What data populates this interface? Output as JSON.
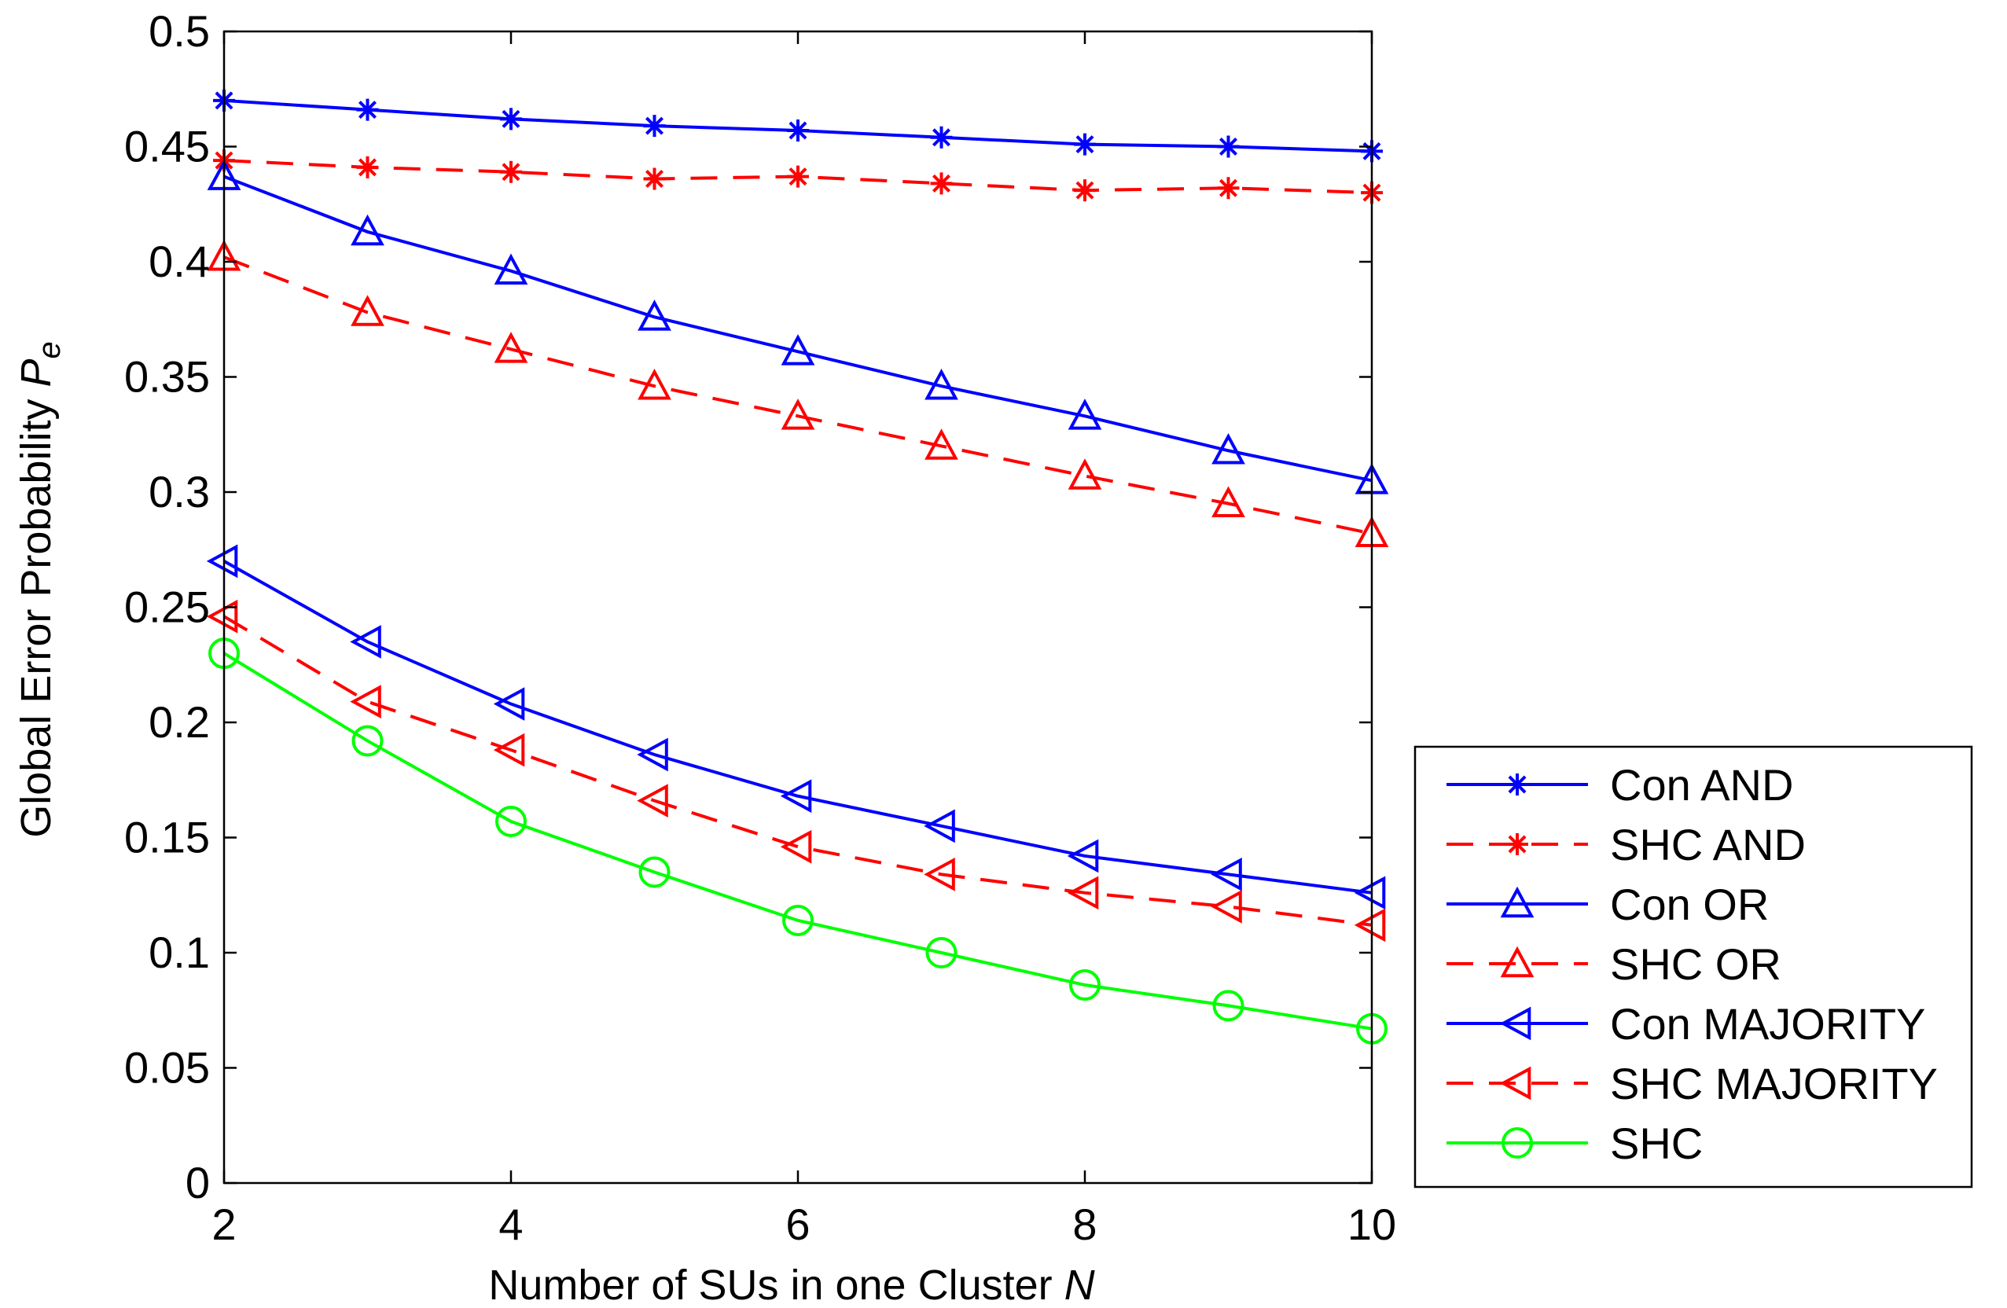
{
  "chart_data": {
    "type": "line",
    "title": "",
    "xlabel": "Number of SUs in one Cluster",
    "xlabel_var": "N",
    "ylabel": "Global Error Probability",
    "ylabel_var": "P",
    "ylabel_sub": "e",
    "xlim": [
      2,
      10
    ],
    "ylim": [
      0,
      0.5
    ],
    "xticks": [
      2,
      4,
      6,
      8,
      10
    ],
    "xtick_labels": [
      "2",
      "4",
      "6",
      "8",
      "10"
    ],
    "yticks": [
      0,
      0.05,
      0.1,
      0.15,
      0.2,
      0.25,
      0.3,
      0.35,
      0.4,
      0.45,
      0.5
    ],
    "ytick_labels": [
      "0",
      "0.05",
      "0.1",
      "0.15",
      "0.2",
      "0.25",
      "0.3",
      "0.35",
      "0.4",
      "0.45",
      "0.5"
    ],
    "grid": false,
    "legend_position": "outside-right-bottom",
    "x": [
      2,
      3,
      4,
      5,
      6,
      7,
      8,
      9,
      10
    ],
    "series": [
      {
        "name": "Con AND",
        "color": "#0000ff",
        "dash": "solid",
        "marker": "asterisk",
        "values": [
          0.47,
          0.466,
          0.462,
          0.459,
          0.457,
          0.454,
          0.451,
          0.45,
          0.448
        ]
      },
      {
        "name": "SHC AND",
        "color": "#ff0000",
        "dash": "dashed",
        "marker": "asterisk",
        "values": [
          0.444,
          0.441,
          0.439,
          0.436,
          0.437,
          0.434,
          0.431,
          0.432,
          0.43
        ]
      },
      {
        "name": "Con OR",
        "color": "#0000ff",
        "dash": "solid",
        "marker": "triangle-up",
        "values": [
          0.437,
          0.413,
          0.396,
          0.376,
          0.361,
          0.346,
          0.333,
          0.318,
          0.305
        ]
      },
      {
        "name": "SHC OR",
        "color": "#ff0000",
        "dash": "dashed",
        "marker": "triangle-up",
        "values": [
          0.402,
          0.378,
          0.362,
          0.346,
          0.333,
          0.32,
          0.307,
          0.295,
          0.282
        ]
      },
      {
        "name": "Con MAJORITY",
        "color": "#0000ff",
        "dash": "solid",
        "marker": "triangle-left",
        "values": [
          0.27,
          0.235,
          0.208,
          0.186,
          0.168,
          0.155,
          0.142,
          0.134,
          0.126
        ]
      },
      {
        "name": "SHC MAJORITY",
        "color": "#ff0000",
        "dash": "dashed",
        "marker": "triangle-left",
        "values": [
          0.246,
          0.209,
          0.188,
          0.166,
          0.146,
          0.134,
          0.126,
          0.12,
          0.112
        ]
      },
      {
        "name": "SHC",
        "color": "#00ff00",
        "dash": "solid",
        "marker": "circle",
        "values": [
          0.23,
          0.192,
          0.157,
          0.135,
          0.114,
          0.1,
          0.086,
          0.077,
          0.067
        ]
      }
    ]
  }
}
